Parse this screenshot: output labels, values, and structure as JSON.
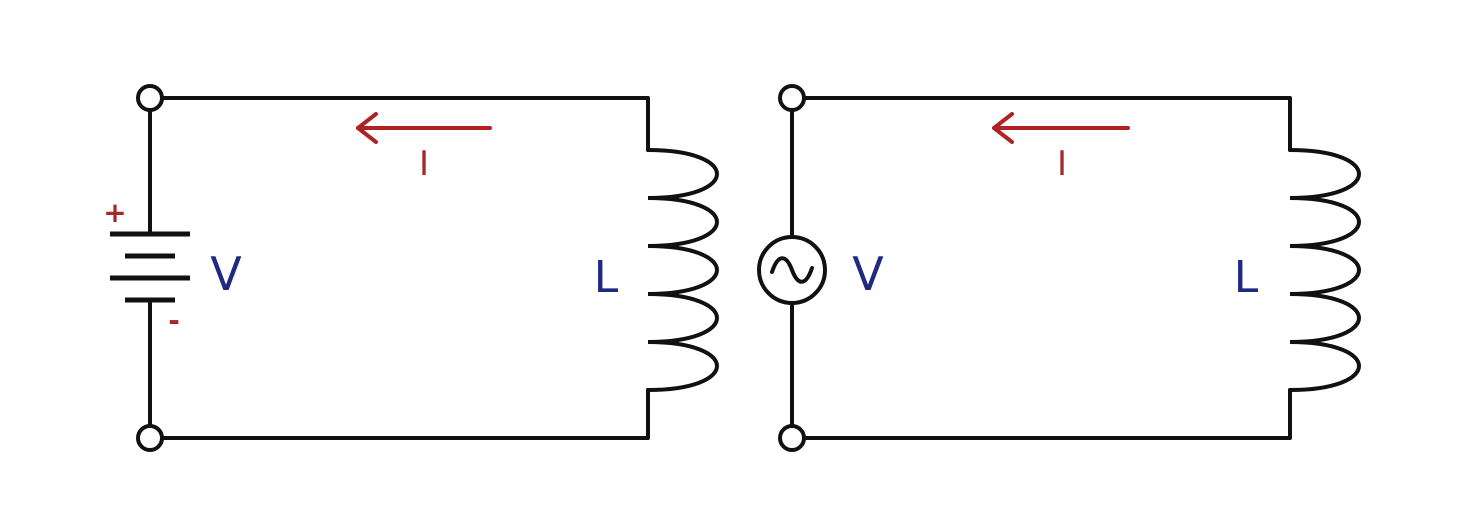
{
  "colors": {
    "wire": "#111111",
    "current": "#b22222",
    "label_current": "#a52a2a",
    "label_component": "#1f2a80"
  },
  "circuits": [
    {
      "source": "battery",
      "source_label": "V",
      "plus_sign": "+",
      "minus_sign": "-",
      "inductor_label": "L",
      "current_label": "I",
      "current_direction": "left"
    },
    {
      "source": "ac-source",
      "source_label": "V",
      "inductor_label": "L",
      "current_label": "I",
      "current_direction": "left"
    }
  ]
}
